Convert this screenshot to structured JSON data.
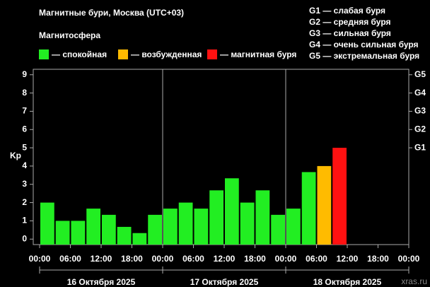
{
  "chart_data": {
    "type": "bar",
    "title": "Магнитные бури, Москва (UTC+03)",
    "subtitle": "Магнитосфера",
    "ylabel": "Kp",
    "legend": [
      {
        "name": "— спокойная",
        "color": "#22ee22"
      },
      {
        "name": "— возбужденная",
        "color": "#ffbb00"
      },
      {
        "name": "— магнитная буря",
        "color": "#ff1111"
      }
    ],
    "scale_legend": [
      "G1 — слабая буря",
      "G2 — средняя буря",
      "G3 — сильная буря",
      "G4 — очень сильная буря",
      "G5 — экстремальная буря"
    ],
    "x": [
      0,
      3,
      6,
      9,
      12,
      15,
      18,
      21,
      24,
      27,
      30,
      33,
      36,
      39,
      42,
      45,
      48,
      51,
      54,
      57,
      60,
      63,
      66,
      69
    ],
    "values": [
      2,
      1,
      1,
      1.67,
      1.33,
      0.67,
      0.33,
      1.33,
      1.67,
      2,
      1.67,
      2.67,
      3.33,
      2,
      2.67,
      1.33,
      1.67,
      3.67,
      4,
      5,
      null,
      null,
      null,
      null
    ],
    "colors": [
      "#22ee22",
      "#22ee22",
      "#22ee22",
      "#22ee22",
      "#22ee22",
      "#22ee22",
      "#22ee22",
      "#22ee22",
      "#22ee22",
      "#22ee22",
      "#22ee22",
      "#22ee22",
      "#22ee22",
      "#22ee22",
      "#22ee22",
      "#22ee22",
      "#22ee22",
      "#22ee22",
      "#ffbb00",
      "#ff1111",
      null,
      null,
      null,
      null
    ],
    "bar_width": 3,
    "xlim": [
      0,
      72
    ],
    "xticks": [
      {
        "value": 0,
        "label": "00:00"
      },
      {
        "value": 6,
        "label": "06:00"
      },
      {
        "value": 12,
        "label": "12:00"
      },
      {
        "value": 18,
        "label": "18:00"
      },
      {
        "value": 24,
        "label": "00:00"
      },
      {
        "value": 30,
        "label": "06:00"
      },
      {
        "value": 36,
        "label": "12:00"
      },
      {
        "value": 42,
        "label": "18:00"
      },
      {
        "value": 48,
        "label": "00:00"
      },
      {
        "value": 54,
        "label": "06:00"
      },
      {
        "value": 60,
        "label": "12:00"
      },
      {
        "value": 66,
        "label": "18:00"
      },
      {
        "value": 72,
        "label": "00:00"
      }
    ],
    "ylim": [
      -0.3,
      9.3
    ],
    "yticks": [
      0,
      1,
      2,
      3,
      4,
      5,
      6,
      7,
      8,
      9
    ],
    "y2lim": [
      -0.3,
      9.3
    ],
    "y2ticks": [
      {
        "value": 5,
        "label": "G1"
      },
      {
        "value": 6,
        "label": "G2"
      },
      {
        "value": 7,
        "label": "G3"
      },
      {
        "value": 8,
        "label": "G4"
      },
      {
        "value": 9,
        "label": "G5"
      }
    ],
    "days": [
      "16 Октября 2025",
      "17 Октября 2025",
      "18 Октября 2025"
    ],
    "watermark": "xras.ru"
  }
}
